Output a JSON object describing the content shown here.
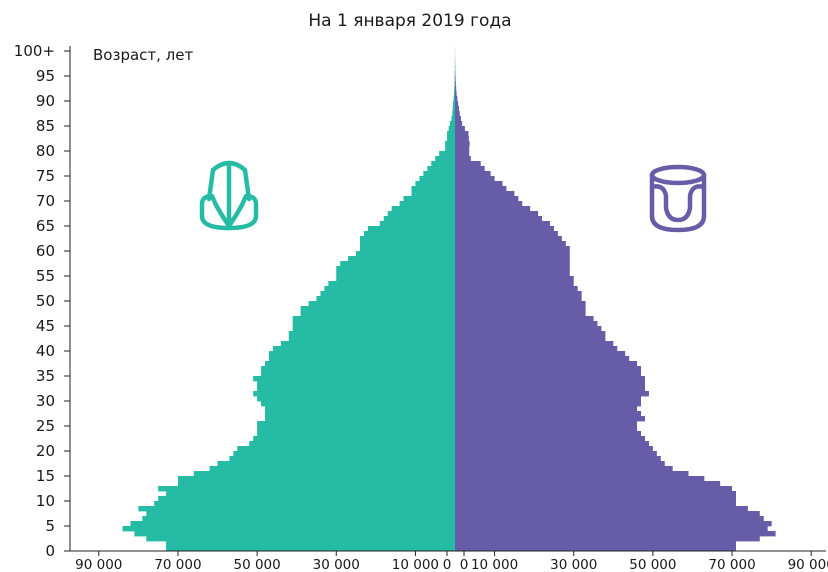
{
  "chart_data": {
    "type": "bar",
    "orientation": "horizontal",
    "title": "На 1 января 2019 года",
    "ylabel": "Возраст, лет",
    "xlabel": "",
    "y_tick_labels": [
      "0",
      "5",
      "10",
      "15",
      "20",
      "25",
      "30",
      "35",
      "40",
      "45",
      "50",
      "55",
      "60",
      "65",
      "70",
      "75",
      "80",
      "85",
      "90",
      "95",
      "100+"
    ],
    "x_tick_labels_left": [
      "90 000",
      "70 000",
      "50 000",
      "30 000",
      "10 000",
      "0"
    ],
    "x_tick_labels_right": [
      "0",
      "10 000",
      "30 000",
      "50 000",
      "70 000",
      "90 000"
    ],
    "xlim": [
      0,
      95000
    ],
    "ylim": [
      0,
      100
    ],
    "grid": false,
    "legend": "icons",
    "colors": {
      "left": "#25BBA5",
      "right": "#665CA8"
    },
    "icons": {
      "left": "male-silhouette-icon",
      "right": "female-silhouette-icon"
    },
    "ages": [
      0,
      1,
      2,
      3,
      4,
      5,
      6,
      7,
      8,
      9,
      10,
      11,
      12,
      13,
      14,
      15,
      16,
      17,
      18,
      19,
      20,
      21,
      22,
      23,
      24,
      25,
      26,
      27,
      28,
      29,
      30,
      31,
      32,
      33,
      34,
      35,
      36,
      37,
      38,
      39,
      40,
      41,
      42,
      43,
      44,
      45,
      46,
      47,
      48,
      49,
      50,
      51,
      52,
      53,
      54,
      55,
      56,
      57,
      58,
      59,
      60,
      61,
      62,
      63,
      64,
      65,
      66,
      67,
      68,
      69,
      70,
      71,
      72,
      73,
      74,
      75,
      76,
      77,
      78,
      79,
      80,
      81,
      82,
      83,
      84,
      85,
      86,
      87,
      88,
      89,
      90,
      91,
      92,
      93,
      94,
      95,
      96,
      97,
      98,
      99,
      100
    ],
    "series": [
      {
        "side": "left",
        "values": [
          73000,
          73000,
          78000,
          81000,
          84000,
          82000,
          79000,
          78000,
          80000,
          76000,
          75000,
          73000,
          75000,
          70000,
          70000,
          66000,
          62000,
          60000,
          57000,
          56000,
          55000,
          52000,
          51000,
          50000,
          50000,
          50000,
          48000,
          48000,
          48000,
          49000,
          50000,
          51000,
          50000,
          50000,
          51000,
          49000,
          49000,
          48000,
          47000,
          47000,
          46000,
          44000,
          42000,
          42000,
          41000,
          41000,
          41000,
          39000,
          39000,
          37000,
          35000,
          34000,
          33000,
          32000,
          30000,
          30000,
          30000,
          29000,
          27000,
          25000,
          24000,
          24000,
          24000,
          23000,
          22000,
          19000,
          18000,
          17000,
          16000,
          14000,
          13000,
          11000,
          11000,
          10000,
          9000,
          8000,
          7000,
          6000,
          5000,
          4000,
          2500,
          2500,
          2000,
          2000,
          1600,
          1300,
          900,
          700,
          600,
          500,
          350,
          250,
          180,
          140,
          100,
          80,
          60,
          40,
          30,
          20,
          10
        ]
      },
      {
        "side": "right",
        "values": [
          71000,
          71000,
          77000,
          81000,
          79000,
          80000,
          78000,
          77000,
          74000,
          71000,
          71000,
          71000,
          70000,
          67000,
          63000,
          59000,
          55000,
          53000,
          52000,
          51000,
          50000,
          49000,
          48000,
          47000,
          46000,
          46000,
          48000,
          47000,
          46000,
          47000,
          47000,
          49000,
          48000,
          48000,
          48000,
          47000,
          47000,
          46000,
          44000,
          43000,
          41000,
          40000,
          38000,
          38000,
          37000,
          36000,
          35000,
          33000,
          33000,
          33000,
          32000,
          32000,
          31000,
          30000,
          30000,
          29000,
          29000,
          29000,
          29000,
          29000,
          29000,
          28000,
          27000,
          26000,
          25000,
          24000,
          22000,
          21000,
          19000,
          17000,
          16000,
          15000,
          13000,
          12000,
          10000,
          9000,
          7500,
          6500,
          4000,
          3600,
          3600,
          3700,
          3500,
          3400,
          2500,
          1800,
          1500,
          1200,
          1000,
          800,
          600,
          400,
          300,
          200,
          150,
          100,
          70,
          50,
          30,
          20,
          10
        ]
      }
    ]
  }
}
